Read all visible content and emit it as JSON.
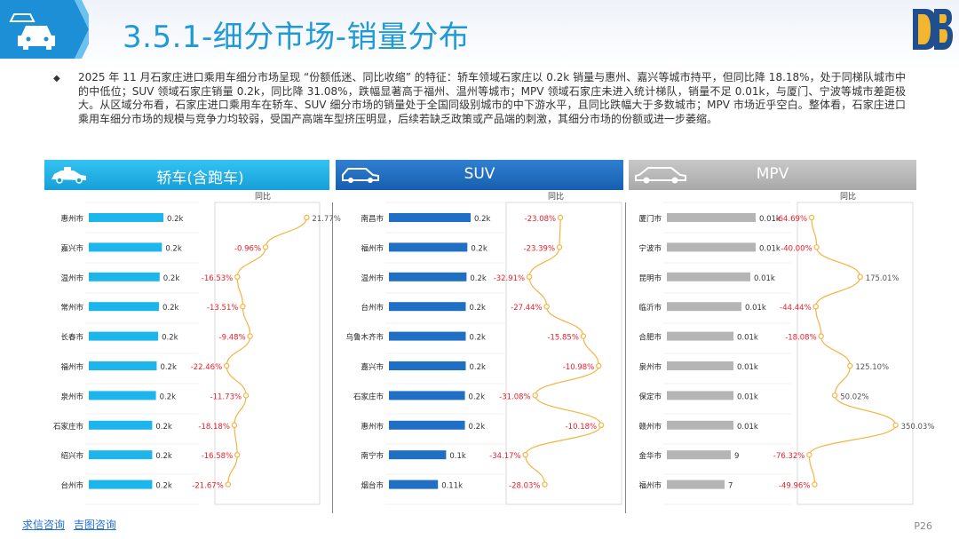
{
  "header": {
    "title": "3.5.1-细分市场-销量分布"
  },
  "description": "2025 年 11 月石家庄进口乘用车细分市场呈现 “份额低迷、同比收缩” 的特征：轿车领域石家庄以 0.2k 销量与惠州、嘉兴等城市持平，但同比降 18.18%，处于同梯队城市中的中低位；SUV 领域石家庄销量 0.2k，同比降 31.08%，跌幅显著高于福州、温州等城市；MPV 领域石家庄未进入统计梯队，销量不足 0.01k，与厦门、宁波等城市差距极大。从区域分布看，石家庄进口乘用车在轿车、SUV 细分市场的销量处于全国同级别城市的中下游水平，且同比跌幅大于多数城市；MPV 市场近乎空白。整体看，石家庄进口乘用车细分市场的规模与竞争力均较弱，受国产高端车型挤压明显，后续若缺乏政策或产品端的刺激，其细分市场的份额或进一步萎缩。",
  "yoy_label": "同比",
  "footer": {
    "link1": "求信咨询",
    "link2": "吉图咨询",
    "page": "P26"
  },
  "colors": {
    "sedan": "#1cb5ec",
    "suv": "#1f6fc4",
    "mpv": "#b5b5b5",
    "line": "#f5b342",
    "neg": "#e8202a",
    "pos": "#555555"
  },
  "chart_data": [
    {
      "type": "bar",
      "title": "轿车(含跑车)",
      "categories": [
        "惠州市",
        "嘉兴市",
        "温州市",
        "常州市",
        "长春市",
        "福州市",
        "泉州市",
        "石家庄市",
        "绍兴市",
        "台州市"
      ],
      "values": [
        0.2,
        0.2,
        0.2,
        0.2,
        0.2,
        0.2,
        0.2,
        0.2,
        0.2,
        0.2
      ],
      "labels": [
        "0.2k",
        "0.2k",
        "0.2k",
        "0.2k",
        "0.2k",
        "0.2k",
        "0.2k",
        "0.2k",
        "0.2k",
        "0.2k"
      ],
      "bar_rel": [
        1.0,
        0.98,
        0.95,
        0.94,
        0.93,
        0.91,
        0.9,
        0.85,
        0.85,
        0.85
      ],
      "yoy": [
        21.77,
        -0.96,
        -16.53,
        -13.51,
        -9.48,
        -22.46,
        -11.73,
        -18.18,
        -16.58,
        -21.67
      ],
      "yoy_labels": [
        "21.77%",
        "-0.96%",
        "-16.53%",
        "-13.51%",
        "-9.48%",
        "-22.46%",
        "-11.73%",
        "-18.18%",
        "-16.58%",
        "-21.67%"
      ],
      "yoy_range": [
        -25,
        25
      ]
    },
    {
      "type": "bar",
      "title": "SUV",
      "categories": [
        "南昌市",
        "福州市",
        "温州市",
        "台州市",
        "乌鲁木齐市",
        "嘉兴市",
        "石家庄市",
        "惠州市",
        "南宁市",
        "烟台市"
      ],
      "values": [
        0.2,
        0.2,
        0.2,
        0.2,
        0.2,
        0.2,
        0.2,
        0.2,
        0.1,
        0.11
      ],
      "labels": [
        "0.2k",
        "0.2k",
        "0.2k",
        "0.2k",
        "0.2k",
        "0.2k",
        "0.2k",
        "0.2k",
        "0.1k",
        "0.11k"
      ],
      "bar_rel": [
        1.0,
        0.96,
        0.95,
        0.94,
        0.94,
        0.94,
        0.93,
        0.93,
        0.7,
        0.6
      ],
      "yoy": [
        -23.08,
        -23.39,
        -32.91,
        -27.44,
        -15.85,
        -10.98,
        -31.08,
        -10.18,
        -34.17,
        -28.03
      ],
      "yoy_labels": [
        "-23.08%",
        "-23.39%",
        "-32.91%",
        "-27.44%",
        "-15.85%",
        "-10.98%",
        "-31.08%",
        "-10.18%",
        "-34.17%",
        "-28.03%"
      ],
      "yoy_range": [
        -38,
        -6
      ]
    },
    {
      "type": "bar",
      "title": "MPV",
      "categories": [
        "厦门市",
        "宁波市",
        "昆明市",
        "临沂市",
        "合肥市",
        "泉州市",
        "保定市",
        "赣州市",
        "金华市",
        "福州市"
      ],
      "values": [
        0.01,
        0.01,
        0.01,
        0.01,
        0.01,
        0.01,
        0.01,
        0.01,
        9,
        7
      ],
      "labels": [
        "0.01k",
        "0.01k",
        "0.01k",
        "0.01k",
        "0.01k",
        "0.01k",
        "0.01k",
        "0.01k",
        "9",
        "7"
      ],
      "bar_rel": [
        1.0,
        1.0,
        0.94,
        0.84,
        0.75,
        0.75,
        0.75,
        0.75,
        0.72,
        0.65
      ],
      "yoy": [
        -64.69,
        -40.0,
        175.01,
        -44.44,
        -18.08,
        125.1,
        50.02,
        350.03,
        -76.32,
        -49.96
      ],
      "yoy_labels": [
        "-64.69%",
        "-40.00%",
        "175.01%",
        "-44.44%",
        "-18.08%",
        "125.10%",
        "50.02%",
        "350.03%",
        "-76.32%",
        "-49.96%"
      ],
      "yoy_range": [
        -100,
        400
      ]
    }
  ]
}
